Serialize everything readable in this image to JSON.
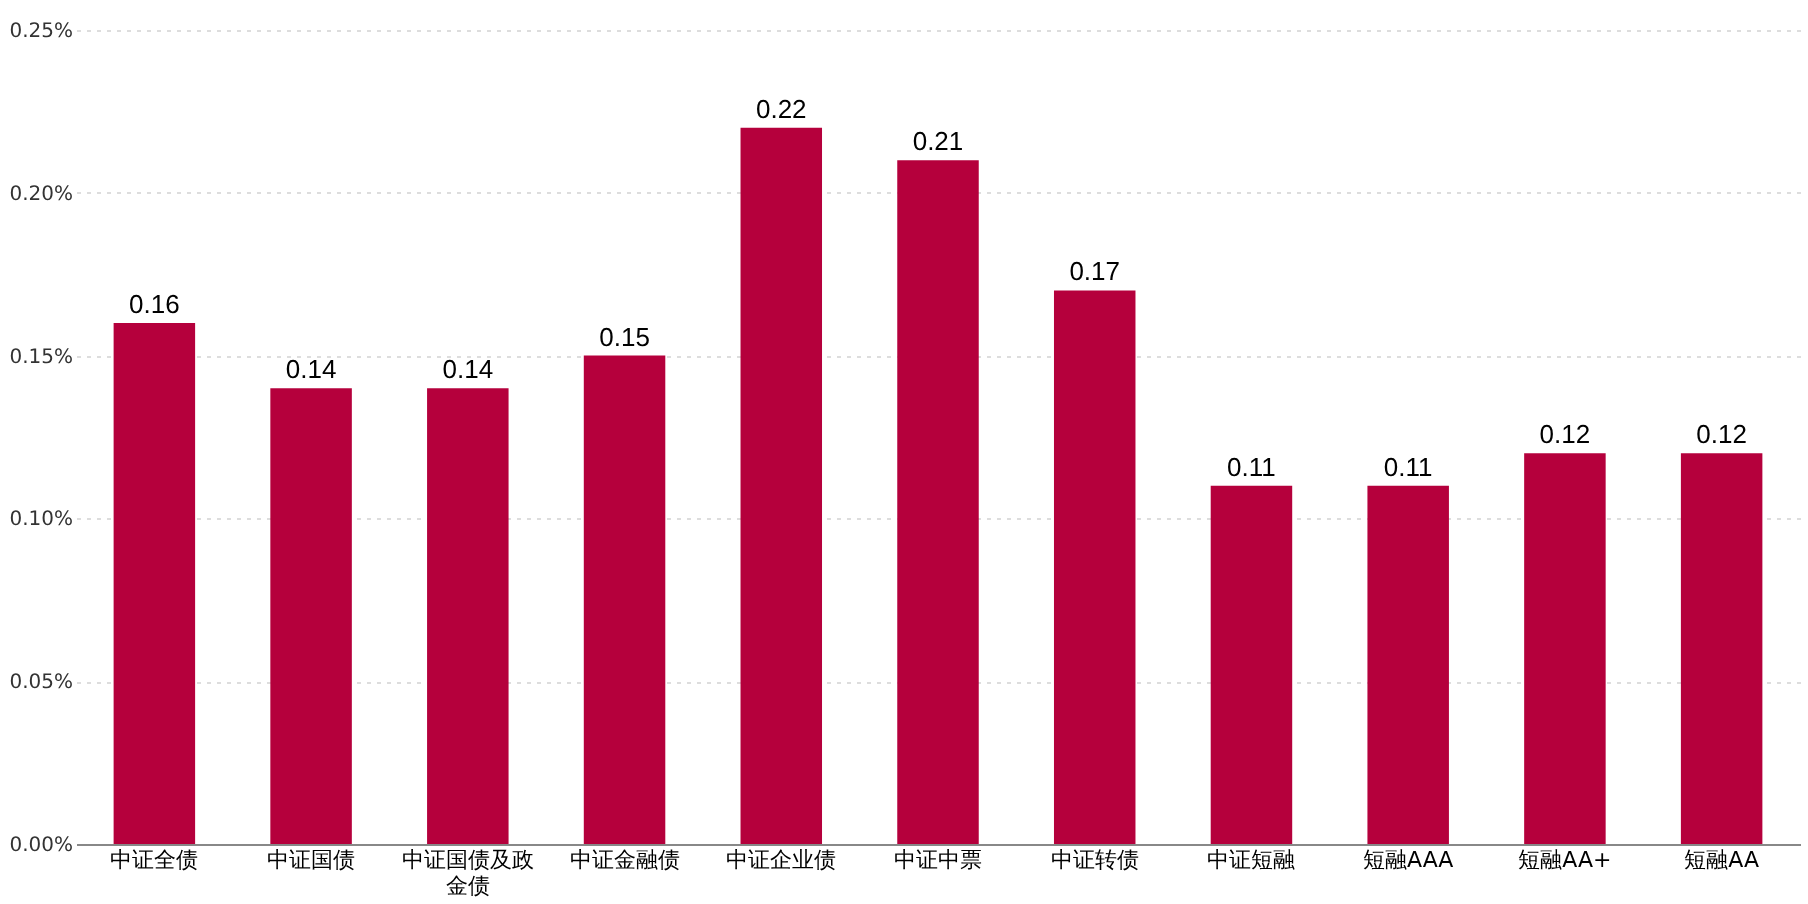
{
  "chart_data": {
    "type": "bar",
    "categories": [
      "中证全债",
      "中证国债",
      "中证国债及政金债",
      "中证金融债",
      "中证企业债",
      "中证中票",
      "中证转债",
      "中证短融",
      "短融AAA",
      "短融AA+",
      "短融AA"
    ],
    "values": [
      0.16,
      0.14,
      0.14,
      0.15,
      0.22,
      0.21,
      0.17,
      0.11,
      0.11,
      0.12,
      0.12
    ],
    "color": "#b5003c",
    "ylim": [
      0,
      0.25
    ],
    "yticks": [
      {
        "value": 0,
        "label": "0.00%"
      },
      {
        "value": 0.05,
        "label": "0.05%"
      },
      {
        "value": 0.1,
        "label": "0.10%"
      },
      {
        "value": 0.15,
        "label": "0.15%"
      },
      {
        "value": 0.2,
        "label": "0.20%"
      },
      {
        "value": 0.25,
        "label": "0.25%"
      }
    ],
    "grid": "y",
    "data_labels": true
  }
}
